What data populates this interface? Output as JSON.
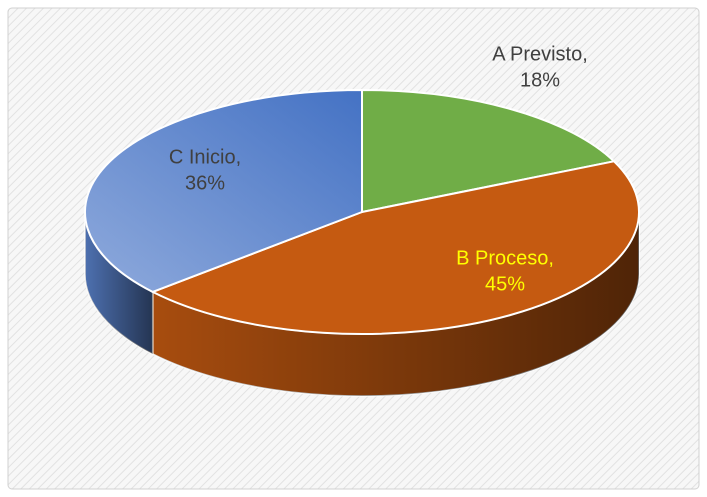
{
  "chart_data": {
    "type": "pie3d",
    "categories": [
      "A Previsto,",
      "B Proceso,",
      "C Inicio,"
    ],
    "values": [
      18,
      45,
      36
    ],
    "value_labels": [
      "18%",
      "45%",
      "36%"
    ],
    "colors": [
      "#70ad47",
      "#c55a11",
      "#5b84cf"
    ],
    "label_colors": [
      "#404040",
      "#ffff00",
      "#404040"
    ]
  }
}
